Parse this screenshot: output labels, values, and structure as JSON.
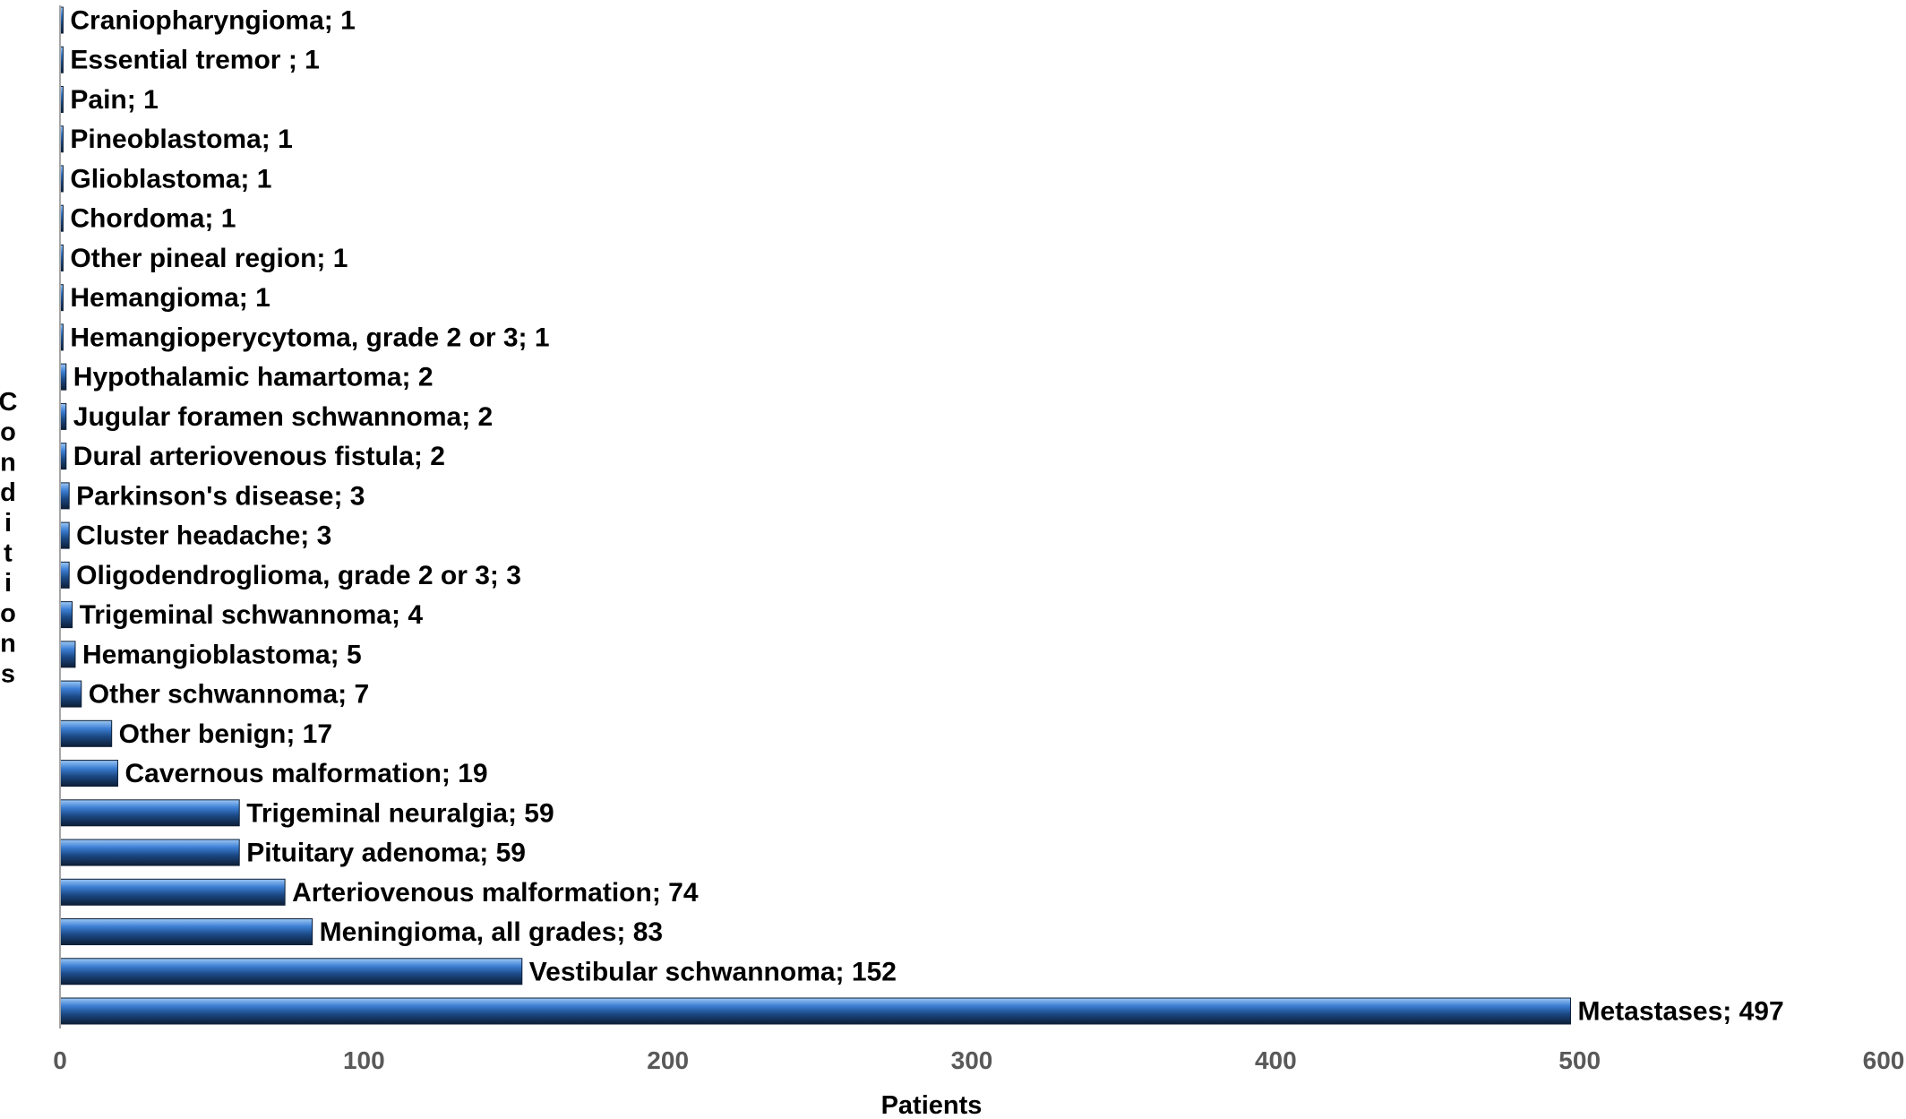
{
  "chart_data": {
    "type": "bar",
    "orientation": "horizontal",
    "xlabel": "Patients",
    "ylabel": "Conditions",
    "xlim": [
      0,
      600
    ],
    "x_ticks": [
      "0",
      "100",
      "200",
      "300",
      "400",
      "500",
      "600"
    ],
    "grid": false,
    "legend": "none",
    "bar_color": "#3d7fd4",
    "bar_dark_color": "#0d1e36",
    "bars": [
      {
        "category": "Craniopharyngioma",
        "value": 1,
        "label": "Craniopharyngioma; 1"
      },
      {
        "category": "Essential tremor ",
        "value": 1,
        "label": "Essential tremor ; 1"
      },
      {
        "category": "Pain",
        "value": 1,
        "label": "Pain; 1"
      },
      {
        "category": "Pineoblastoma",
        "value": 1,
        "label": "Pineoblastoma; 1"
      },
      {
        "category": "Glioblastoma",
        "value": 1,
        "label": "Glioblastoma; 1"
      },
      {
        "category": "Chordoma",
        "value": 1,
        "label": "Chordoma; 1"
      },
      {
        "category": "Other pineal region",
        "value": 1,
        "label": "Other pineal region; 1"
      },
      {
        "category": "Hemangioma",
        "value": 1,
        "label": "Hemangioma; 1"
      },
      {
        "category": "Hemangioperycytoma, grade 2 or 3",
        "value": 1,
        "label": "Hemangioperycytoma, grade 2 or 3; 1"
      },
      {
        "category": "Hypothalamic hamartoma",
        "value": 2,
        "label": "Hypothalamic hamartoma; 2"
      },
      {
        "category": "Jugular foramen schwannoma",
        "value": 2,
        "label": "Jugular foramen schwannoma; 2"
      },
      {
        "category": "Dural arteriovenous fistula",
        "value": 2,
        "label": "Dural arteriovenous fistula; 2"
      },
      {
        "category": "Parkinson's disease",
        "value": 3,
        "label": "Parkinson's disease; 3"
      },
      {
        "category": "Cluster headache",
        "value": 3,
        "label": "Cluster headache; 3"
      },
      {
        "category": "Oligodendroglioma, grade 2 or 3",
        "value": 3,
        "label": "Oligodendroglioma, grade 2 or 3; 3"
      },
      {
        "category": "Trigeminal schwannoma",
        "value": 4,
        "label": "Trigeminal schwannoma; 4"
      },
      {
        "category": "Hemangioblastoma",
        "value": 5,
        "label": "Hemangioblastoma; 5"
      },
      {
        "category": "Other schwannoma",
        "value": 7,
        "label": "Other schwannoma; 7"
      },
      {
        "category": "Other benign",
        "value": 17,
        "label": "Other benign; 17"
      },
      {
        "category": "Cavernous malformation",
        "value": 19,
        "label": "Cavernous malformation; 19"
      },
      {
        "category": "Trigeminal neuralgia",
        "value": 59,
        "label": "Trigeminal neuralgia; 59"
      },
      {
        "category": "Pituitary adenoma",
        "value": 59,
        "label": "Pituitary adenoma; 59"
      },
      {
        "category": "Arteriovenous malformation",
        "value": 74,
        "label": "Arteriovenous malformation; 74"
      },
      {
        "category": "Meningioma, all grades",
        "value": 83,
        "label": "Meningioma, all grades; 83"
      },
      {
        "category": "Vestibular schwannoma",
        "value": 152,
        "label": "Vestibular schwannoma; 152"
      },
      {
        "category": "Metastases",
        "value": 497,
        "label": "Metastases; 497"
      }
    ]
  }
}
